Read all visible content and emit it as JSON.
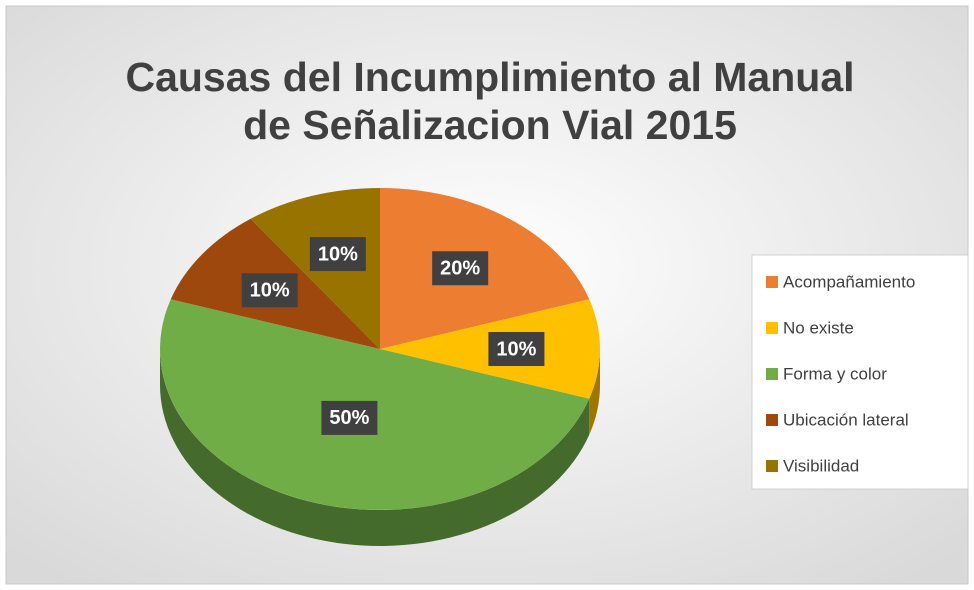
{
  "chart_data": {
    "type": "pie",
    "title": "Causas del Incumplimiento al Manual de Señalizacion Vial 2015",
    "categories": [
      "Acompañamiento",
      "No existe",
      "Forma y color",
      "Ubicación lateral",
      "Visibilidad"
    ],
    "values": [
      20,
      10,
      50,
      10,
      10
    ],
    "value_labels": [
      "20%",
      "10%",
      "50%",
      "10%",
      "10%"
    ],
    "colors": [
      "#ED7D31",
      "#FFC000",
      "#70AD47",
      "#9E480E",
      "#997300"
    ],
    "legend": "right"
  }
}
